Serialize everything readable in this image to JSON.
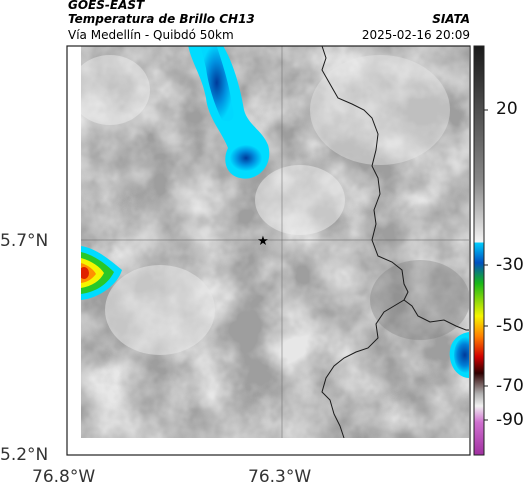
{
  "header": {
    "satellite": "GOES-EAST",
    "product": "Temperatura de Brillo CH13",
    "region": "Vía Medellín - Quibdó 50km",
    "agency": "SIATA",
    "timestamp": "2025-02-16 20:09"
  },
  "map": {
    "lat_ticks": [
      "5.7°N",
      "5.2°N"
    ],
    "lon_ticks": [
      "76.8°W",
      "76.3°W"
    ],
    "marker": "star"
  },
  "colorbar": {
    "ticks": [
      "20",
      "-30",
      "-50",
      "-70",
      "-90"
    ],
    "colors": {
      "cyan": "#00c8ff",
      "blue": "#0044bb",
      "green": "#22cc22",
      "yellow": "#f5f500",
      "orange": "#ff8800",
      "red": "#e00000",
      "magenta": "#c23fbf"
    }
  }
}
